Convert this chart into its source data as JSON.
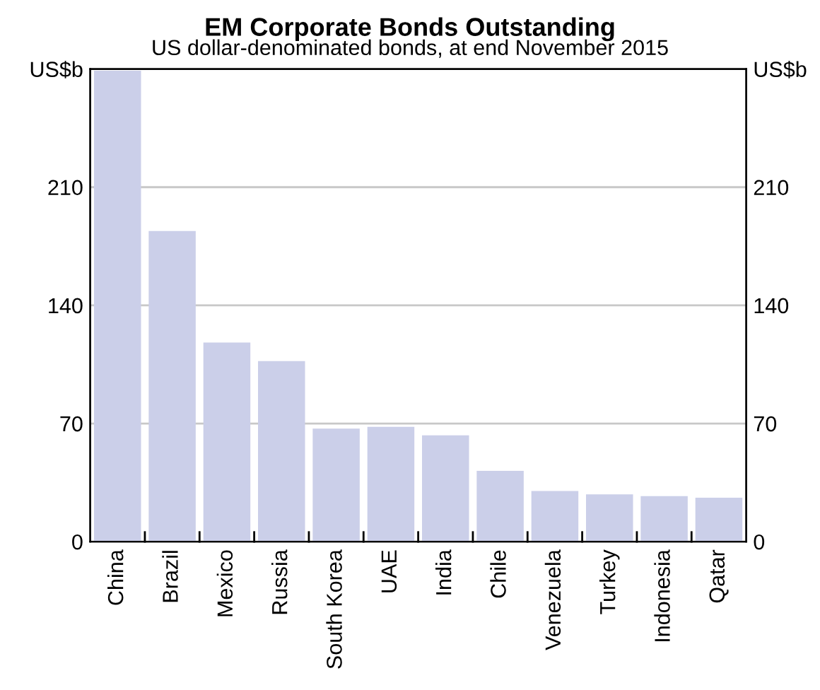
{
  "chart_data": {
    "type": "bar",
    "title": "EM Corporate Bonds Outstanding",
    "subtitle": "US dollar-denominated bonds, at end November 2015",
    "categories": [
      "China",
      "Brazil",
      "Mexico",
      "Russia",
      "South Korea",
      "UAE",
      "India",
      "Chile",
      "Venezuela",
      "Turkey",
      "Indonesia",
      "Qatar"
    ],
    "values": [
      279,
      184,
      118,
      107,
      67,
      68,
      63,
      42,
      30,
      28,
      27,
      26
    ],
    "color": "#cbcfe9",
    "ylim": [
      0,
      280
    ],
    "yticks": [
      0,
      70,
      140,
      210,
      {
        "value": 280,
        "label": "US$b"
      }
    ],
    "y2lim": [
      0,
      280
    ],
    "y2ticks": [
      0,
      70,
      140,
      210,
      {
        "value": 280,
        "label": "US$b"
      }
    ],
    "grid": "y"
  }
}
